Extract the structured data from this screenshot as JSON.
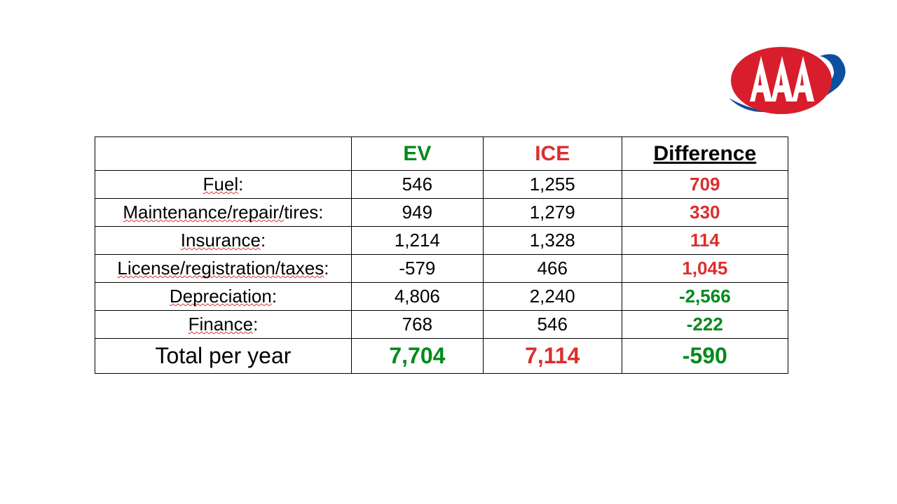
{
  "colors": {
    "green": "#008a1c",
    "red": "#dc2e2e",
    "black": "#000000"
  },
  "table": {
    "headers": {
      "blank": "",
      "ev": "EV",
      "ice": "ICE",
      "diff": "Difference"
    },
    "rows": [
      {
        "label_parts": [
          {
            "text": "Fuel",
            "wavy": true
          },
          {
            "text": ":",
            "wavy": false
          }
        ],
        "ev": "546",
        "ice": "1,255",
        "diff": "709",
        "diff_color": "red"
      },
      {
        "label_parts": [
          {
            "text": "Maintenance/repair/",
            "wavy": true
          },
          {
            "text": "tires:",
            "wavy": false
          }
        ],
        "ev": "949",
        "ice": "1,279",
        "diff": "330",
        "diff_color": "red"
      },
      {
        "label_parts": [
          {
            "text": "Insurance",
            "wavy": true
          },
          {
            "text": ":",
            "wavy": false
          }
        ],
        "ev": "1,214",
        "ice": "1,328",
        "diff": "114",
        "diff_color": "red"
      },
      {
        "label_parts": [
          {
            "text": "License/registration/taxes",
            "wavy": true
          },
          {
            "text": ":",
            "wavy": false
          }
        ],
        "ev": "-579",
        "ice": "466",
        "diff": "1,045",
        "diff_color": "red"
      },
      {
        "label_parts": [
          {
            "text": "Depreciation",
            "wavy": true
          },
          {
            "text": ":",
            "wavy": false
          }
        ],
        "ev": "4,806",
        "ice": "2,240",
        "diff": "-2,566",
        "diff_color": "green"
      },
      {
        "label_parts": [
          {
            "text": "Finance",
            "wavy": true
          },
          {
            "text": ":",
            "wavy": false
          }
        ],
        "ev": "768",
        "ice": "546",
        "diff": "-222",
        "diff_color": "green"
      }
    ],
    "total": {
      "label": "Total per year",
      "ev": "7,704",
      "ev_color": "green",
      "ice": "7,114",
      "ice_color": "red",
      "diff": "-590",
      "diff_color": "green"
    }
  }
}
